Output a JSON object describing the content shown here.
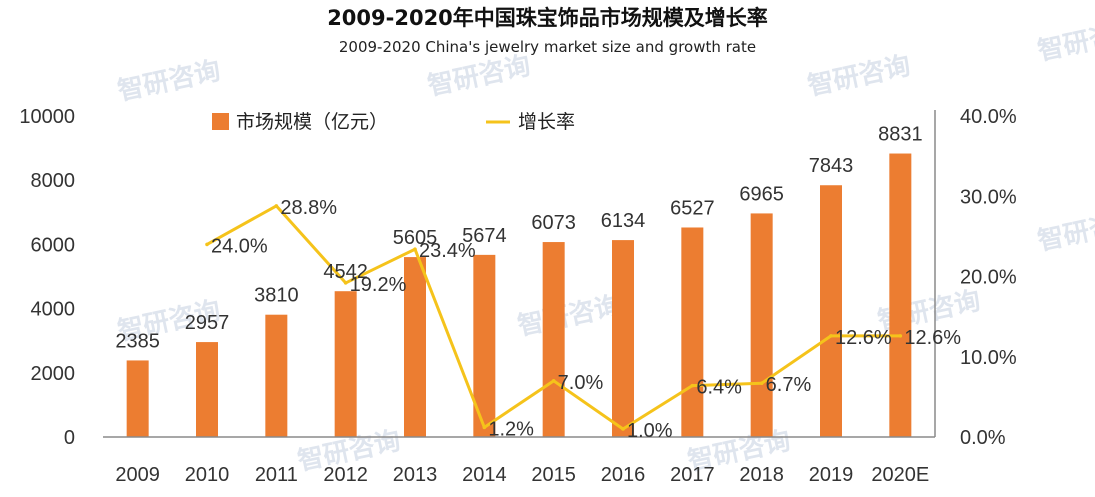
{
  "title": "2009-2020年中国珠宝饰品市场规模及增长率",
  "subtitle": "2009-2020 China's jewelry market size and growth rate",
  "watermark_text": "智研咨询",
  "colors": {
    "bar": "#ec7d31",
    "line": "#f5c31b",
    "axis": "#8a8a8a",
    "watermark": "#dfe5ee"
  },
  "chart_data": {
    "type": "bar",
    "categories": [
      "2009",
      "2010",
      "2011",
      "2012",
      "2013",
      "2014",
      "2015",
      "2016",
      "2017",
      "2018",
      "2019",
      "2020E"
    ],
    "series": [
      {
        "name": "市场规模（亿元）",
        "type": "bar",
        "axis": "left",
        "values": [
          2385,
          2957,
          3810,
          4542,
          5605,
          5674,
          6073,
          6134,
          6527,
          6965,
          7843,
          8831
        ]
      },
      {
        "name": "增长率",
        "type": "line",
        "axis": "right",
        "values": [
          null,
          24.0,
          28.8,
          19.2,
          23.4,
          1.2,
          7.0,
          1.0,
          6.4,
          6.7,
          12.6,
          12.6
        ]
      }
    ],
    "bar_labels": [
      "2385",
      "2957",
      "3810",
      "4542",
      "5605",
      "5674",
      "6073",
      "6134",
      "6527",
      "6965",
      "7843",
      "8831"
    ],
    "line_labels": [
      "",
      "24.0%",
      "28.8%",
      "19.2%",
      "23.4%",
      "1.2%",
      "7.0%",
      "1.0%",
      "6.4%",
      "6.7%",
      "12.6%",
      "12.6%"
    ],
    "left_axis": {
      "ylim": [
        0,
        10000
      ],
      "ticks": [
        "0",
        "2000",
        "4000",
        "6000",
        "8000",
        "10000"
      ]
    },
    "right_axis": {
      "ylim": [
        0,
        40
      ],
      "ticks": [
        "0.0%",
        "10.0%",
        "20.0%",
        "30.0%",
        "40.0%"
      ]
    },
    "legend": {
      "position": "top",
      "items": [
        "市场规模（亿元）",
        "增长率"
      ]
    },
    "grid": false
  }
}
